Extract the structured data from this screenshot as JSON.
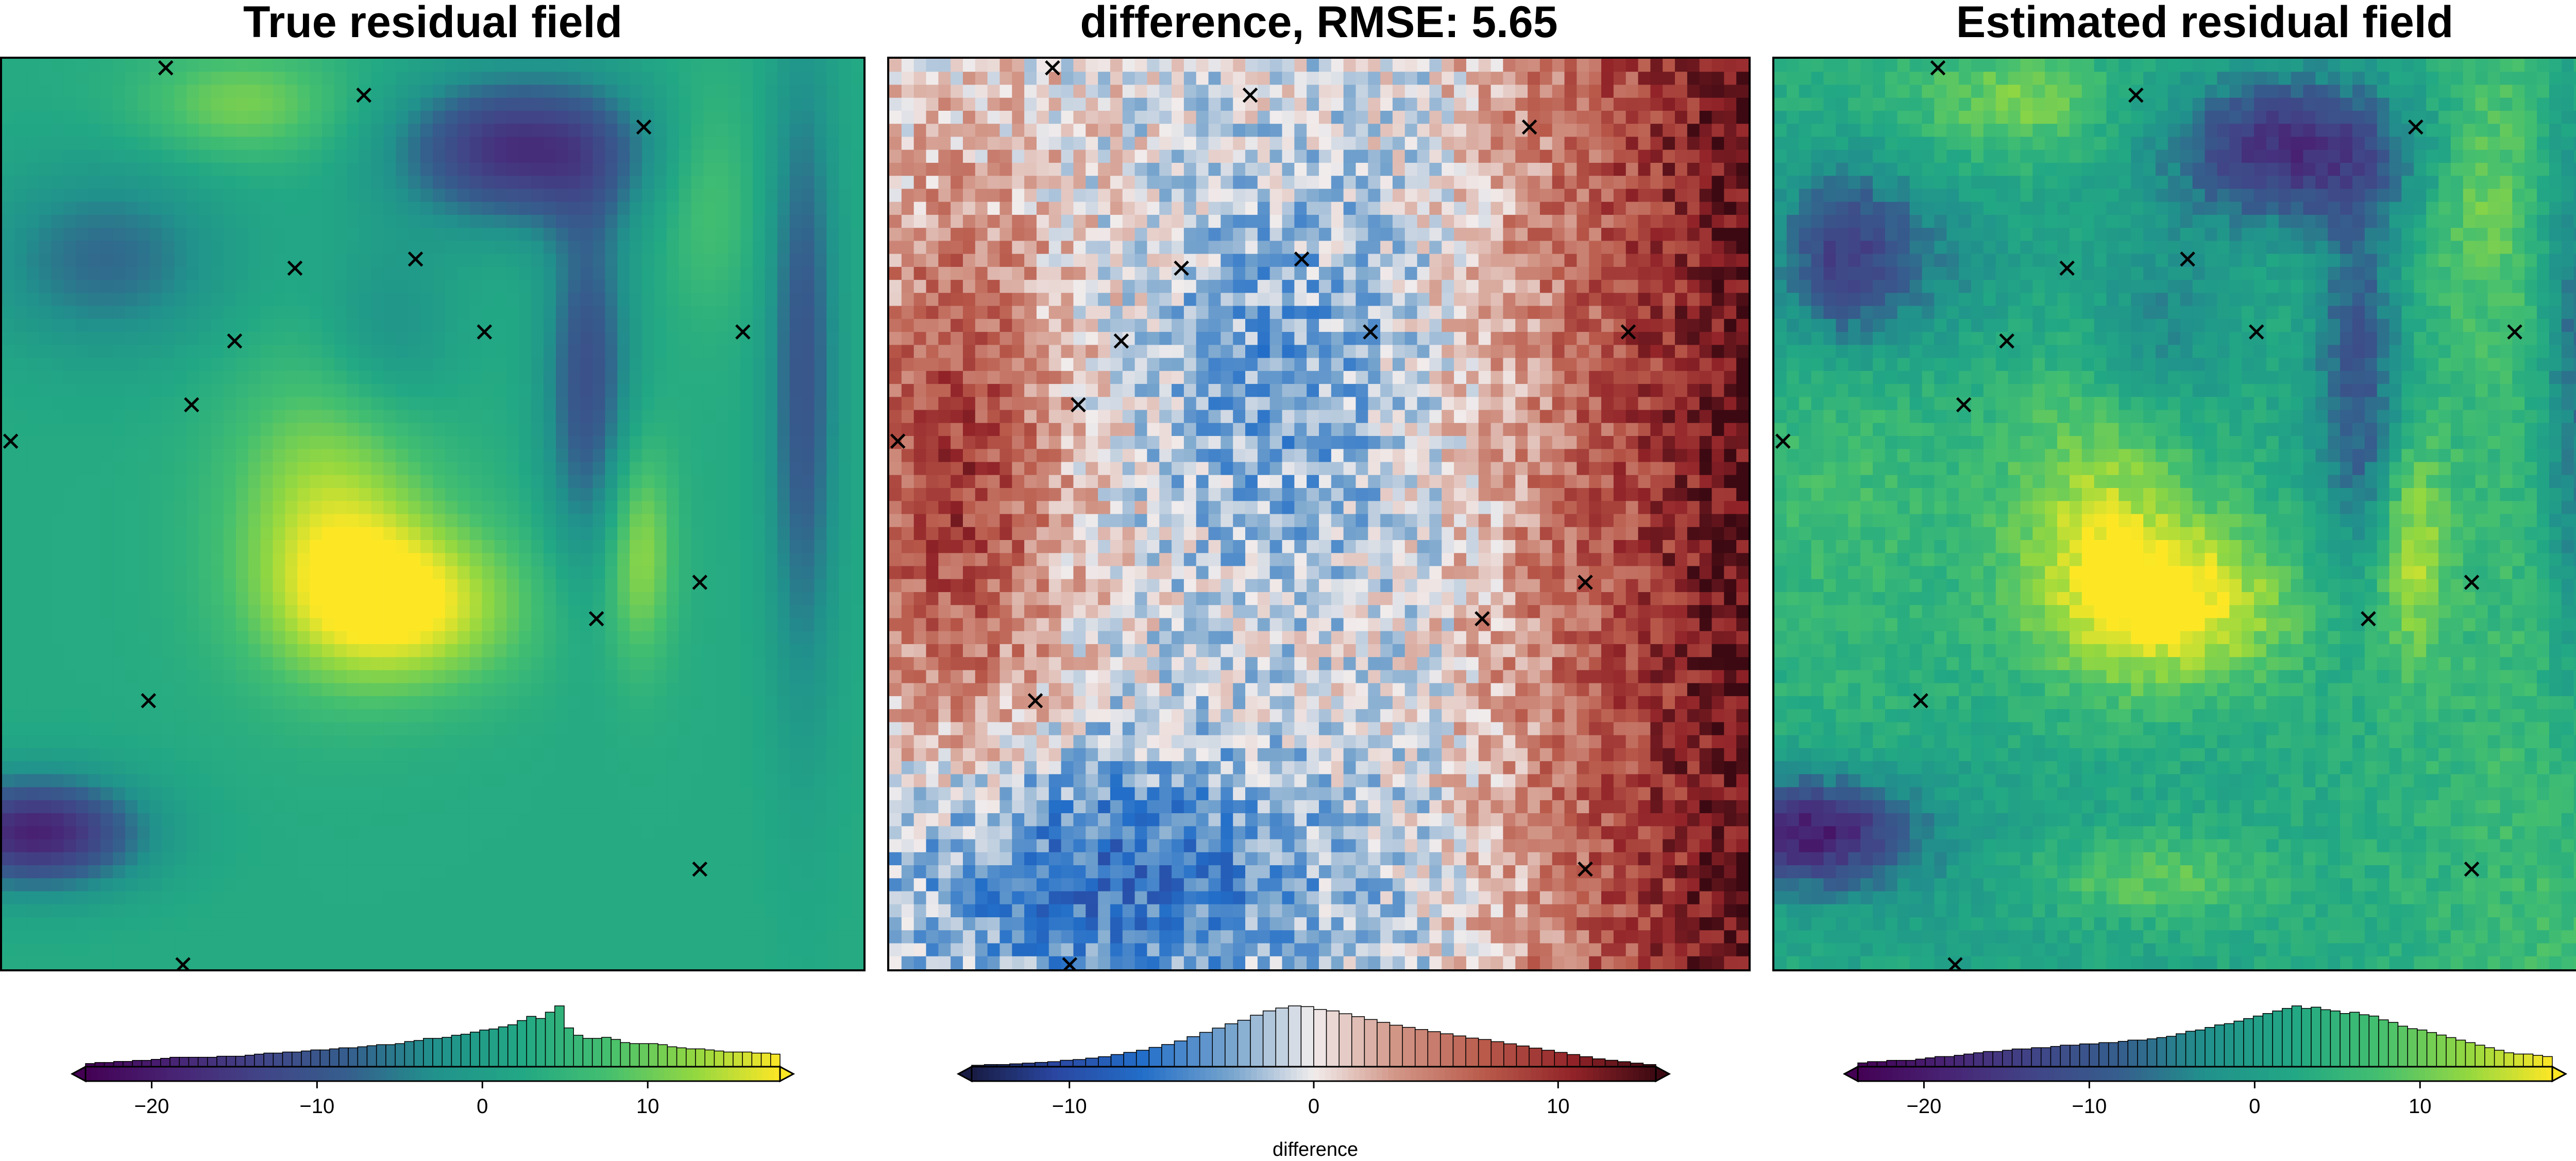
{
  "chart_data": [
    {
      "type": "heatmap",
      "title": "True residual field",
      "colormap": "viridis",
      "color_range": [
        -24,
        18
      ],
      "colorbar": {
        "ticks": [
          -20,
          -10,
          0,
          10
        ],
        "tick_labels": [
          "−20",
          "−10",
          "0",
          "10"
        ],
        "xlabel": "",
        "extend": "both",
        "histogram_counts": [
          3,
          4,
          4,
          5,
          5,
          6,
          6,
          7,
          8,
          9,
          9,
          9,
          9,
          9,
          10,
          10,
          10,
          11,
          12,
          13,
          13,
          14,
          14,
          15,
          16,
          16,
          17,
          18,
          18,
          19,
          20,
          21,
          21,
          22,
          24,
          25,
          27,
          27,
          28,
          30,
          31,
          33,
          35,
          36,
          38,
          40,
          44,
          48,
          46,
          52,
          58,
          37,
          30,
          27,
          27,
          28,
          26,
          23,
          22,
          22,
          22,
          21,
          19,
          18,
          17,
          17,
          16,
          15,
          14,
          14,
          14,
          13,
          13,
          12
        ]
      },
      "markers": [
        {
          "x": 0.19,
          "y": 0.01
        },
        {
          "x": 0.42,
          "y": 0.04
        },
        {
          "x": 0.745,
          "y": 0.075
        },
        {
          "x": 0.34,
          "y": 0.23
        },
        {
          "x": 0.48,
          "y": 0.22
        },
        {
          "x": 0.56,
          "y": 0.3
        },
        {
          "x": 0.86,
          "y": 0.3
        },
        {
          "x": 0.27,
          "y": 0.31
        },
        {
          "x": 0.22,
          "y": 0.38
        },
        {
          "x": 0.01,
          "y": 0.42
        },
        {
          "x": 0.81,
          "y": 0.575
        },
        {
          "x": 0.69,
          "y": 0.615
        },
        {
          "x": 0.17,
          "y": 0.705
        },
        {
          "x": 0.81,
          "y": 0.89
        },
        {
          "x": 0.21,
          "y": 0.995
        }
      ]
    },
    {
      "type": "heatmap",
      "title": "difference, RMSE: 5.65",
      "colormap": "balance",
      "color_range": [
        -14,
        14
      ],
      "colorbar": {
        "ticks": [
          -10,
          0,
          10
        ],
        "tick_labels": [
          "−10",
          "0",
          "10"
        ],
        "xlabel": "difference",
        "extend": "both",
        "histogram_counts": [
          2,
          3,
          3,
          4,
          5,
          6,
          7,
          9,
          10,
          12,
          14,
          17,
          20,
          23,
          27,
          31,
          36,
          42,
          48,
          54,
          60,
          65,
          72,
          78,
          82,
          85,
          84,
          80,
          78,
          74,
          70,
          66,
          62,
          58,
          55,
          52,
          49,
          46,
          43,
          40,
          38,
          35,
          32,
          29,
          26,
          23,
          20,
          17,
          14,
          11,
          9,
          7,
          5,
          3
        ]
      },
      "markers": [
        {
          "x": 0.19,
          "y": 0.01
        },
        {
          "x": 0.42,
          "y": 0.04
        },
        {
          "x": 0.745,
          "y": 0.075
        },
        {
          "x": 0.34,
          "y": 0.23
        },
        {
          "x": 0.48,
          "y": 0.22
        },
        {
          "x": 0.56,
          "y": 0.3
        },
        {
          "x": 0.86,
          "y": 0.3
        },
        {
          "x": 0.27,
          "y": 0.31
        },
        {
          "x": 0.22,
          "y": 0.38
        },
        {
          "x": 0.01,
          "y": 0.42
        },
        {
          "x": 0.81,
          "y": 0.575
        },
        {
          "x": 0.69,
          "y": 0.615
        },
        {
          "x": 0.17,
          "y": 0.705
        },
        {
          "x": 0.81,
          "y": 0.89
        },
        {
          "x": 0.21,
          "y": 0.995
        }
      ]
    },
    {
      "type": "heatmap",
      "title": "Estimated residual field",
      "colormap": "viridis",
      "color_range": [
        -24,
        18
      ],
      "colorbar": {
        "ticks": [
          -20,
          -10,
          0,
          10
        ],
        "tick_labels": [
          "−20",
          "−10",
          "0",
          "10"
        ],
        "xlabel": "",
        "extend": "both",
        "histogram_counts": [
          3,
          4,
          4,
          5,
          5,
          5,
          6,
          7,
          8,
          8,
          9,
          10,
          11,
          12,
          12,
          13,
          14,
          14,
          15,
          15,
          16,
          17,
          17,
          18,
          18,
          19,
          19,
          20,
          21,
          21,
          22,
          23,
          24,
          26,
          28,
          29,
          31,
          33,
          34,
          36,
          38,
          40,
          42,
          44,
          46,
          48,
          46,
          47,
          45,
          44,
          42,
          43,
          41,
          40,
          37,
          35,
          32,
          30,
          29,
          27,
          25,
          23,
          21,
          19,
          17,
          15,
          13,
          11,
          10,
          10,
          9,
          8
        ]
      },
      "markers": [
        {
          "x": 0.19,
          "y": 0.01
        },
        {
          "x": 0.42,
          "y": 0.04
        },
        {
          "x": 0.745,
          "y": 0.075
        },
        {
          "x": 0.34,
          "y": 0.23
        },
        {
          "x": 0.48,
          "y": 0.22
        },
        {
          "x": 0.56,
          "y": 0.3
        },
        {
          "x": 0.86,
          "y": 0.3
        },
        {
          "x": 0.27,
          "y": 0.31
        },
        {
          "x": 0.22,
          "y": 0.38
        },
        {
          "x": 0.01,
          "y": 0.42
        },
        {
          "x": 0.81,
          "y": 0.575
        },
        {
          "x": 0.69,
          "y": 0.615
        },
        {
          "x": 0.17,
          "y": 0.705
        },
        {
          "x": 0.81,
          "y": 0.89
        },
        {
          "x": 0.21,
          "y": 0.995
        }
      ]
    }
  ]
}
